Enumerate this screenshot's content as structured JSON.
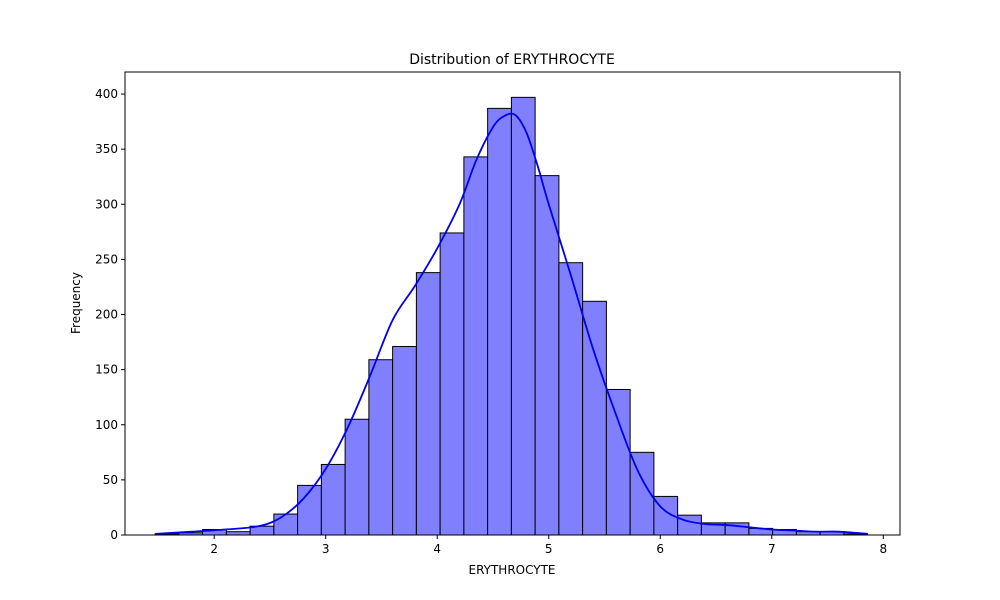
{
  "chart_data": {
    "type": "bar",
    "title": "Distribution of ERYTHROCYTE",
    "xlabel": "ERYTHROCYTE",
    "ylabel": "Frequency",
    "xlim": [
      1.2,
      8.15
    ],
    "ylim": [
      0,
      420
    ],
    "x_ticks": [
      2,
      3,
      4,
      5,
      6,
      7,
      8
    ],
    "y_ticks": [
      0,
      50,
      100,
      150,
      200,
      250,
      300,
      350,
      400
    ],
    "grid": false,
    "bin_edges": [
      1.47,
      1.683,
      1.896,
      2.109,
      2.322,
      2.535,
      2.748,
      2.961,
      3.174,
      3.387,
      3.6,
      3.813,
      4.026,
      4.239,
      4.452,
      4.665,
      4.878,
      5.091,
      5.304,
      5.517,
      5.73,
      5.943,
      6.156,
      6.369,
      6.582,
      6.795,
      7.008,
      7.221,
      7.434,
      7.647,
      7.86
    ],
    "counts": [
      1,
      2,
      5,
      3,
      8,
      19,
      45,
      64,
      105,
      159,
      171,
      238,
      274,
      343,
      387,
      397,
      326,
      247,
      212,
      132,
      75,
      35,
      18,
      11,
      11,
      6,
      5,
      3,
      3,
      1
    ],
    "kde": {
      "x": [
        1.47,
        1.8,
        2.1,
        2.4,
        2.6,
        2.8,
        3.0,
        3.2,
        3.4,
        3.6,
        3.8,
        4.0,
        4.2,
        4.35,
        4.5,
        4.6,
        4.7,
        4.8,
        4.9,
        5.0,
        5.2,
        5.4,
        5.6,
        5.8,
        6.0,
        6.2,
        6.4,
        6.6,
        6.8,
        7.0,
        7.2,
        7.4,
        7.6,
        7.86
      ],
      "y": [
        1,
        3,
        5,
        8,
        16,
        33,
        60,
        98,
        145,
        195,
        226,
        260,
        300,
        340,
        370,
        380,
        381,
        365,
        335,
        300,
        235,
        168,
        110,
        58,
        26,
        14,
        10,
        9,
        7,
        5,
        4,
        3,
        3,
        1
      ]
    },
    "colors": {
      "bar_fill": "#8080ff",
      "bar_edge": "#000000",
      "kde_line": "#0000ee"
    }
  }
}
